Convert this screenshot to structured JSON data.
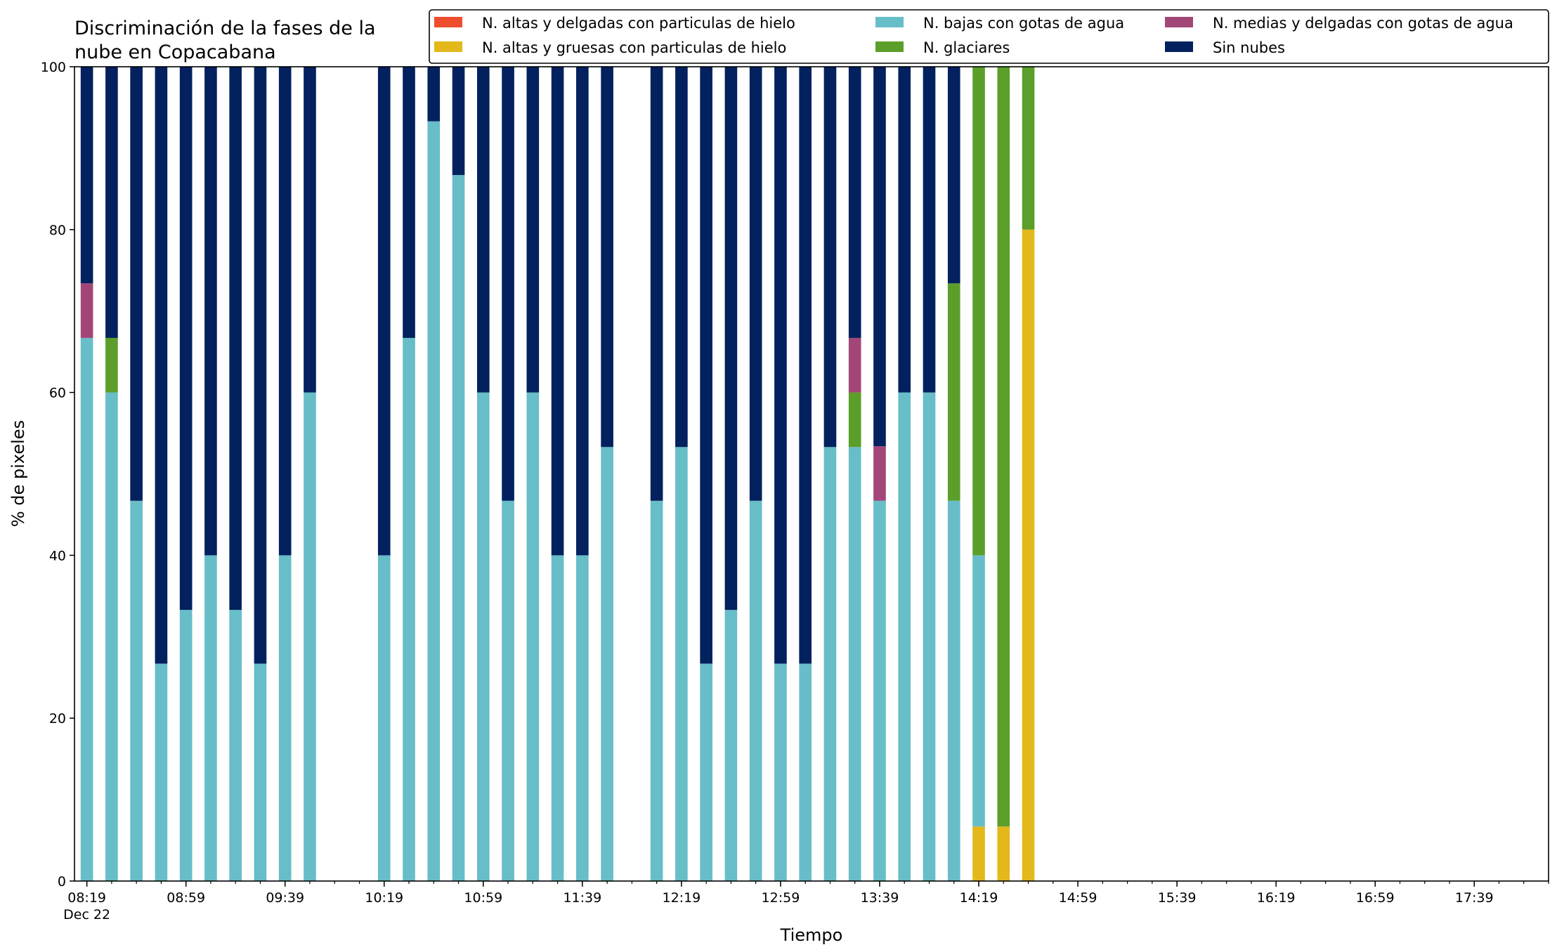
{
  "chart_data": {
    "type": "bar",
    "stacked": true,
    "title": "Discriminación de la fases de la nube en Copacabana",
    "title_lines": [
      "Discriminación de la fases de la",
      "nube en Copacabana"
    ],
    "xlabel": "Tiempo",
    "ylabel": "% de pixeles",
    "ylim": [
      0,
      100
    ],
    "yticks": [
      0,
      20,
      40,
      60,
      80,
      100
    ],
    "x_range": [
      "08:14",
      "18:09"
    ],
    "xtick_labels": [
      "08:19",
      "08:59",
      "09:39",
      "10:19",
      "10:59",
      "11:39",
      "12:19",
      "12:59",
      "13:39",
      "14:19",
      "14:59",
      "15:39",
      "16:19",
      "16:59",
      "17:39"
    ],
    "xtick_sublabel": "Dec 22",
    "minor_tick_interval_min": 10,
    "bar_interval_min": 10,
    "legend_position": "top-right",
    "legend_columns": 3,
    "grid": false,
    "x": [
      "08:19",
      "08:29",
      "08:39",
      "08:49",
      "08:59",
      "09:09",
      "09:19",
      "09:29",
      "09:39",
      "09:49",
      "10:19",
      "10:29",
      "10:39",
      "10:49",
      "10:59",
      "11:09",
      "11:19",
      "11:29",
      "11:39",
      "11:49",
      "12:09",
      "12:19",
      "12:29",
      "12:39",
      "12:49",
      "12:59",
      "13:09",
      "13:19",
      "13:29",
      "13:39",
      "13:49",
      "13:59",
      "14:09",
      "14:19",
      "14:29",
      "14:39"
    ],
    "series": [
      {
        "name": "N. altas y delgadas con particulas de hielo",
        "color": "#ee4e2e",
        "values": [
          0,
          0,
          0,
          0,
          0,
          0,
          0,
          0,
          0,
          0,
          0,
          0,
          0,
          0,
          0,
          0,
          0,
          0,
          0,
          0,
          0,
          0,
          0,
          0,
          0,
          0,
          0,
          0,
          0,
          0,
          0,
          0,
          0,
          0,
          0,
          0
        ]
      },
      {
        "name": "N. altas y gruesas con particulas de hielo",
        "color": "#e3b81a",
        "values": [
          0,
          0,
          0,
          0,
          0,
          0,
          0,
          0,
          0,
          0,
          0,
          0,
          0,
          0,
          0,
          0,
          0,
          0,
          0,
          0,
          0,
          0,
          0,
          0,
          0,
          0,
          0,
          0,
          0,
          0,
          0,
          0,
          0,
          6.7,
          6.7,
          80
        ]
      },
      {
        "name": "N. bajas con gotas de agua",
        "color": "#67bdc8",
        "values": [
          66.7,
          60,
          46.7,
          26.7,
          33.3,
          40,
          33.3,
          26.7,
          40,
          60,
          40,
          66.7,
          93.3,
          86.7,
          60,
          46.7,
          60,
          40,
          40,
          53.3,
          46.7,
          53.3,
          26.7,
          33.3,
          46.7,
          26.7,
          26.7,
          53.3,
          53.3,
          46.7,
          60,
          60,
          46.7,
          33.3,
          0,
          0
        ]
      },
      {
        "name": "N. glaciares",
        "color": "#5b9f2a",
        "values": [
          0,
          6.7,
          0,
          0,
          0,
          0,
          0,
          0,
          0,
          0,
          0,
          0,
          0,
          0,
          0,
          0,
          0,
          0,
          0,
          0,
          0,
          0,
          0,
          0,
          0,
          0,
          0,
          0,
          6.7,
          0,
          0,
          0,
          26.7,
          60,
          93.3,
          20
        ]
      },
      {
        "name": "N. medias y delgadas con gotas de agua",
        "color": "#a24677",
        "values": [
          6.7,
          0,
          0,
          0,
          0,
          0,
          0,
          0,
          0,
          0,
          0,
          0,
          0,
          0,
          0,
          0,
          0,
          0,
          0,
          0,
          0,
          0,
          0,
          0,
          0,
          0,
          0,
          0,
          6.7,
          6.7,
          0,
          0,
          0,
          0,
          0,
          0
        ]
      },
      {
        "name": "Sin nubes",
        "color": "#03215e",
        "values": [
          26.7,
          33.3,
          53.3,
          73.3,
          66.7,
          60,
          66.7,
          73.3,
          60,
          40,
          60,
          33.3,
          6.7,
          13.3,
          40,
          53.3,
          40,
          60,
          60,
          46.7,
          53.3,
          46.7,
          73.3,
          66.7,
          53.3,
          73.3,
          73.3,
          46.7,
          33.3,
          46.6,
          40,
          40,
          26.7,
          0,
          0,
          0
        ]
      }
    ]
  }
}
